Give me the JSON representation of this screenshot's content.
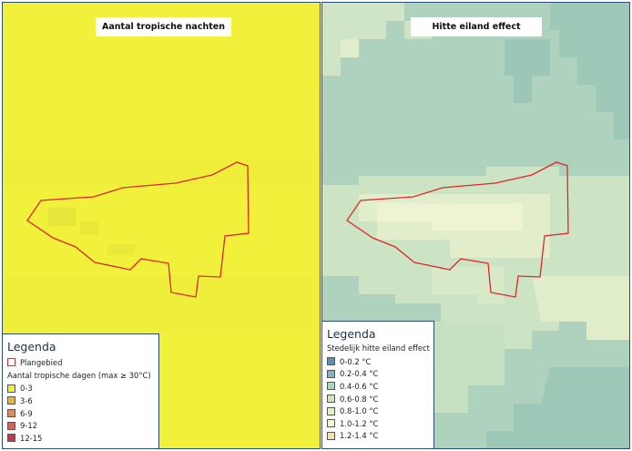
{
  "left_map": {
    "title": "Aantal tropische nachten",
    "legend": {
      "title": "Legenda",
      "boundary_label": "Plangebied",
      "subtitle": "Aantal tropische dagen (max ≥ 30°C)",
      "classes": [
        {
          "label": "0-3",
          "color": "#f1f03a"
        },
        {
          "label": "3-6",
          "color": "#e9b447"
        },
        {
          "label": "6-9",
          "color": "#e38c55"
        },
        {
          "label": "9-12",
          "color": "#de5d55"
        },
        {
          "label": "12-15",
          "color": "#d6304b"
        }
      ]
    }
  },
  "right_map": {
    "title": "Hitte eiland effect",
    "legend": {
      "title": "Legenda",
      "subtitle": "Stedelijk hitte eiland effect",
      "classes": [
        {
          "label": "0-0.2 °C",
          "color": "#5d8fb5"
        },
        {
          "label": "0.2-0.4 °C",
          "color": "#84b4bf"
        },
        {
          "label": "0.4-0.6 °C",
          "color": "#aed2be"
        },
        {
          "label": "0.6-0.8 °C",
          "color": "#cce4c4"
        },
        {
          "label": "0.8-1.0 °C",
          "color": "#e3efcc"
        },
        {
          "label": "1.0-1.2 °C",
          "color": "#f4f5d8"
        },
        {
          "label": "1.2-1.4 °C",
          "color": "#f6dfb0"
        }
      ]
    }
  },
  "colors": {
    "plangebied_outline": "#e0262a",
    "frame": "#2b4f72"
  }
}
